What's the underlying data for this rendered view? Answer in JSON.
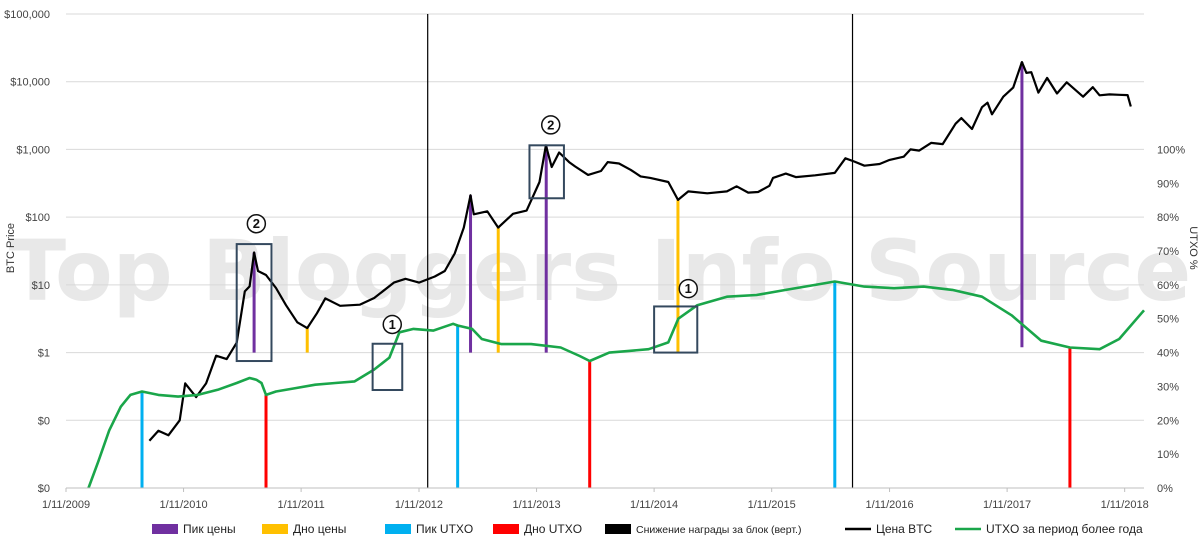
{
  "chart_data": {
    "type": "line",
    "title": "",
    "watermark": "Top Bloggers Info Source",
    "y_left": {
      "label": "BTC Price",
      "scale": "log",
      "range": [
        0.01,
        100000
      ],
      "ticks": [
        "$100,000",
        "$10,000",
        "$1,000",
        "$100",
        "$10",
        "$1",
        "$0",
        "$0"
      ],
      "tick_values": [
        100000,
        10000,
        1000,
        100,
        10,
        1,
        0.1,
        0.01
      ]
    },
    "y_right": {
      "label": "UTXO %",
      "scale": "linear",
      "range": [
        0,
        100
      ],
      "ticks": [
        "100%",
        "90%",
        "80%",
        "70%",
        "60%",
        "50%",
        "40%",
        "30%",
        "20%",
        "10%",
        "0%"
      ],
      "tick_values": [
        100,
        90,
        80,
        70,
        60,
        50,
        40,
        30,
        20,
        10,
        0
      ]
    },
    "x": {
      "range": [
        "2009-11-01",
        "2018-12-31"
      ],
      "ticks": [
        "1/11/2009",
        "1/11/2010",
        "1/11/2011",
        "1/11/2012",
        "1/11/2013",
        "1/11/2014",
        "1/11/2015",
        "1/11/2016",
        "1/11/2017",
        "1/11/2018"
      ],
      "tick_dates": [
        "2009-11-01",
        "2010-11-01",
        "2011-11-01",
        "2012-11-01",
        "2013-11-01",
        "2014-11-01",
        "2015-11-01",
        "2016-11-01",
        "2017-11-01",
        "2018-11-01"
      ]
    },
    "grid": "horizontal",
    "legend_position": "bottom",
    "series": [
      {
        "name": "Цена BTC",
        "color": "#000000",
        "axis": "left",
        "points": [
          [
            "2010-07-18",
            0.05
          ],
          [
            "2010-08-15",
            0.07
          ],
          [
            "2010-09-15",
            0.06
          ],
          [
            "2010-10-20",
            0.1
          ],
          [
            "2010-11-06",
            0.35
          ],
          [
            "2010-12-10",
            0.22
          ],
          [
            "2011-01-10",
            0.35
          ],
          [
            "2011-02-10",
            0.9
          ],
          [
            "2011-03-15",
            0.8
          ],
          [
            "2011-04-15",
            1.4
          ],
          [
            "2011-05-10",
            8.0
          ],
          [
            "2011-05-25",
            9.5
          ],
          [
            "2011-06-08",
            30.0
          ],
          [
            "2011-06-20",
            16.0
          ],
          [
            "2011-07-15",
            14.0
          ],
          [
            "2011-08-15",
            9.0
          ],
          [
            "2011-09-15",
            5.0
          ],
          [
            "2011-10-20",
            2.8
          ],
          [
            "2011-11-20",
            2.3
          ],
          [
            "2011-12-20",
            3.8
          ],
          [
            "2012-01-15",
            6.3
          ],
          [
            "2012-03-01",
            4.9
          ],
          [
            "2012-05-01",
            5.1
          ],
          [
            "2012-06-15",
            6.4
          ],
          [
            "2012-08-15",
            10.8
          ],
          [
            "2012-09-20",
            12.3
          ],
          [
            "2012-11-01",
            10.8
          ],
          [
            "2012-12-20",
            13.3
          ],
          [
            "2013-01-20",
            16.0
          ],
          [
            "2013-02-20",
            29.0
          ],
          [
            "2013-03-20",
            70.0
          ],
          [
            "2013-04-10",
            210.0
          ],
          [
            "2013-04-20",
            110.0
          ],
          [
            "2013-06-01",
            122.0
          ],
          [
            "2013-07-05",
            70.0
          ],
          [
            "2013-08-20",
            112.0
          ],
          [
            "2013-10-01",
            125.0
          ],
          [
            "2013-11-10",
            330.0
          ],
          [
            "2013-11-30",
            1150.0
          ],
          [
            "2013-12-18",
            550.0
          ],
          [
            "2014-01-10",
            900.0
          ],
          [
            "2014-02-10",
            650.0
          ],
          [
            "2014-03-01",
            560.0
          ],
          [
            "2014-04-10",
            420.0
          ],
          [
            "2014-05-20",
            480.0
          ],
          [
            "2014-06-10",
            650.0
          ],
          [
            "2014-07-15",
            620.0
          ],
          [
            "2014-08-20",
            500.0
          ],
          [
            "2014-09-20",
            400.0
          ],
          [
            "2014-10-20",
            380.0
          ],
          [
            "2014-12-15",
            330.0
          ],
          [
            "2015-01-14",
            180.0
          ],
          [
            "2015-02-15",
            240.0
          ],
          [
            "2015-04-15",
            225.0
          ],
          [
            "2015-06-15",
            240.0
          ],
          [
            "2015-07-15",
            285.0
          ],
          [
            "2015-08-20",
            230.0
          ],
          [
            "2015-09-20",
            235.0
          ],
          [
            "2015-10-25",
            290.0
          ],
          [
            "2015-11-05",
            380.0
          ],
          [
            "2015-12-15",
            440.0
          ],
          [
            "2016-01-15",
            390.0
          ],
          [
            "2016-03-15",
            415.0
          ],
          [
            "2016-05-15",
            450.0
          ],
          [
            "2016-06-17",
            740.0
          ],
          [
            "2016-07-15",
            660.0
          ],
          [
            "2016-08-15",
            575.0
          ],
          [
            "2016-10-01",
            610.0
          ],
          [
            "2016-11-01",
            700.0
          ],
          [
            "2016-12-15",
            780.0
          ],
          [
            "2017-01-05",
            1000.0
          ],
          [
            "2017-02-01",
            960.0
          ],
          [
            "2017-03-10",
            1250.0
          ],
          [
            "2017-04-15",
            1200.0
          ],
          [
            "2017-05-25",
            2400.0
          ],
          [
            "2017-06-12",
            2900.0
          ],
          [
            "2017-07-15",
            2000.0
          ],
          [
            "2017-08-15",
            4200.0
          ],
          [
            "2017-09-01",
            4900.0
          ],
          [
            "2017-09-15",
            3300.0
          ],
          [
            "2017-10-20",
            6000.0
          ],
          [
            "2017-11-20",
            8200.0
          ],
          [
            "2017-12-17",
            19500.0
          ],
          [
            "2017-12-31",
            13500.0
          ],
          [
            "2018-01-15",
            13800.0
          ],
          [
            "2018-02-06",
            6900.0
          ],
          [
            "2018-03-05",
            11400.0
          ],
          [
            "2018-04-05",
            6700.0
          ],
          [
            "2018-05-05",
            9800.0
          ],
          [
            "2018-06-25",
            6000.0
          ],
          [
            "2018-07-25",
            8300.0
          ],
          [
            "2018-08-15",
            6300.0
          ],
          [
            "2018-09-15",
            6500.0
          ],
          [
            "2018-10-15",
            6400.0
          ],
          [
            "2018-11-10",
            6350.0
          ],
          [
            "2018-11-20",
            4300.0
          ]
        ]
      },
      {
        "name": "UTXO за период более года",
        "color": "#1aa64a",
        "axis": "right",
        "points": [
          [
            "2010-01-10",
            0.0
          ],
          [
            "2010-02-10",
            8.0
          ],
          [
            "2010-03-15",
            17.0
          ],
          [
            "2010-04-20",
            24.0
          ],
          [
            "2010-05-20",
            27.5
          ],
          [
            "2010-06-25",
            28.5
          ],
          [
            "2010-08-15",
            27.5
          ],
          [
            "2010-10-15",
            27.0
          ],
          [
            "2010-12-15",
            27.5
          ],
          [
            "2011-02-15",
            29.0
          ],
          [
            "2011-04-15",
            31.0
          ],
          [
            "2011-05-25",
            32.5
          ],
          [
            "2011-06-15",
            32.0
          ],
          [
            "2011-07-01",
            31.0
          ],
          [
            "2011-07-15",
            27.5
          ],
          [
            "2011-08-15",
            28.5
          ],
          [
            "2011-10-15",
            29.5
          ],
          [
            "2011-12-15",
            30.5
          ],
          [
            "2012-02-15",
            31.0
          ],
          [
            "2012-04-15",
            31.5
          ],
          [
            "2012-06-15",
            35.0
          ],
          [
            "2012-08-01",
            38.5
          ],
          [
            "2012-09-01",
            46.0
          ],
          [
            "2012-10-15",
            47.0
          ],
          [
            "2012-12-15",
            46.5
          ],
          [
            "2013-01-15",
            47.5
          ],
          [
            "2013-02-15",
            48.5
          ],
          [
            "2013-03-01",
            48.0
          ],
          [
            "2013-04-15",
            47.0
          ],
          [
            "2013-05-15",
            44.0
          ],
          [
            "2013-07-15",
            42.5
          ],
          [
            "2013-10-15",
            42.5
          ],
          [
            "2014-01-15",
            41.5
          ],
          [
            "2014-03-15",
            39.0
          ],
          [
            "2014-04-15",
            37.5
          ],
          [
            "2014-06-15",
            40.0
          ],
          [
            "2014-08-15",
            40.5
          ],
          [
            "2014-10-15",
            41.0
          ],
          [
            "2014-12-15",
            43.0
          ],
          [
            "2015-01-15",
            50.0
          ],
          [
            "2015-03-15",
            54.0
          ],
          [
            "2015-06-15",
            56.5
          ],
          [
            "2015-09-15",
            57.0
          ],
          [
            "2015-12-15",
            58.5
          ],
          [
            "2016-03-15",
            60.0
          ],
          [
            "2016-05-15",
            61.0
          ],
          [
            "2016-08-15",
            59.5
          ],
          [
            "2016-11-15",
            59.0
          ],
          [
            "2017-02-15",
            59.5
          ],
          [
            "2017-05-15",
            58.5
          ],
          [
            "2017-08-15",
            56.5
          ],
          [
            "2017-11-15",
            51.0
          ],
          [
            "2018-02-15",
            43.5
          ],
          [
            "2018-05-15",
            41.5
          ],
          [
            "2018-08-15",
            41.0
          ],
          [
            "2018-10-15",
            44.0
          ],
          [
            "2018-12-31",
            52.5
          ]
        ]
      }
    ],
    "vertical_markers": [
      {
        "type": "price_peak",
        "date": "2011-06-08",
        "from_price": 1.0,
        "to_price": 30.0
      },
      {
        "type": "price_peak",
        "date": "2013-04-10",
        "from_price": 1.0,
        "to_price": 210.0
      },
      {
        "type": "price_peak",
        "date": "2013-12-01",
        "from_price": 1.0,
        "to_price": 1100.0
      },
      {
        "type": "price_peak",
        "date": "2017-12-17",
        "from_price": 1.2,
        "to_price": 19500.0
      },
      {
        "type": "price_bottom",
        "date": "2011-11-20",
        "from_price": 1.0,
        "to_price": 2.3
      },
      {
        "type": "price_bottom",
        "date": "2013-07-05",
        "from_price": 1.0,
        "to_price": 70.0
      },
      {
        "type": "price_bottom",
        "date": "2015-01-14",
        "from_price": 1.0,
        "to_price": 180.0
      },
      {
        "type": "utxo_peak",
        "date": "2010-06-25",
        "from_pct": 0,
        "to_pct": 28.5
      },
      {
        "type": "utxo_peak",
        "date": "2013-03-01",
        "from_pct": 0,
        "to_pct": 48.0
      },
      {
        "type": "utxo_peak",
        "date": "2016-05-15",
        "from_pct": 0,
        "to_pct": 61.0
      },
      {
        "type": "utxo_bottom",
        "date": "2011-07-15",
        "from_pct": 0,
        "to_pct": 27.5
      },
      {
        "type": "utxo_bottom",
        "date": "2014-04-15",
        "from_pct": 0,
        "to_pct": 37.5
      },
      {
        "type": "utxo_bottom",
        "date": "2018-05-15",
        "from_pct": 0,
        "to_pct": 41.5
      }
    ],
    "halvings": [
      "2012-11-28",
      "2016-07-09"
    ],
    "annotations": [
      {
        "label": "2",
        "date_from": "2011-04-15",
        "date_to": "2011-08-01",
        "price_from": 0.75,
        "price_to": 40.0,
        "label_date": "2011-06-15",
        "label_price": 80.0
      },
      {
        "label": "1",
        "date_from": "2012-06-10",
        "date_to": "2012-09-10",
        "price_from": 0.28,
        "price_to": 1.35,
        "label_date": "2012-08-10",
        "label_price": 2.6
      },
      {
        "label": "2",
        "date_from": "2013-10-10",
        "date_to": "2014-01-25",
        "price_from": 190.0,
        "price_to": 1150.0,
        "label_date": "2013-12-15",
        "label_price": 2300.0
      },
      {
        "label": "1",
        "date_from": "2014-11-01",
        "date_to": "2015-03-15",
        "price_from": 1.0,
        "price_to": 4.8,
        "label_date": "2015-02-15",
        "label_price": 8.8
      }
    ],
    "legend": [
      {
        "label": "Пик цены",
        "color": "#7030a0",
        "style": "box"
      },
      {
        "label": "Дно цены",
        "color": "#ffc000",
        "style": "box"
      },
      {
        "label": "Пик UTXO",
        "color": "#00b0f0",
        "style": "box"
      },
      {
        "label": "Дно UTXO",
        "color": "#ff0000",
        "style": "box"
      },
      {
        "label": "Снижение награды за блок (верт.)",
        "color": "#000000",
        "style": "box"
      },
      {
        "label": "Цена BTC",
        "color": "#000000",
        "style": "line"
      },
      {
        "label": "UTXO за период более года",
        "color": "#1aa64a",
        "style": "line"
      }
    ],
    "colors": {
      "price_peak": "#7030a0",
      "price_bottom": "#ffc000",
      "utxo_peak": "#00b0f0",
      "utxo_bottom": "#ff0000",
      "halving": "#000000",
      "box": "#34495e",
      "grid": "#d9d9d9"
    }
  }
}
